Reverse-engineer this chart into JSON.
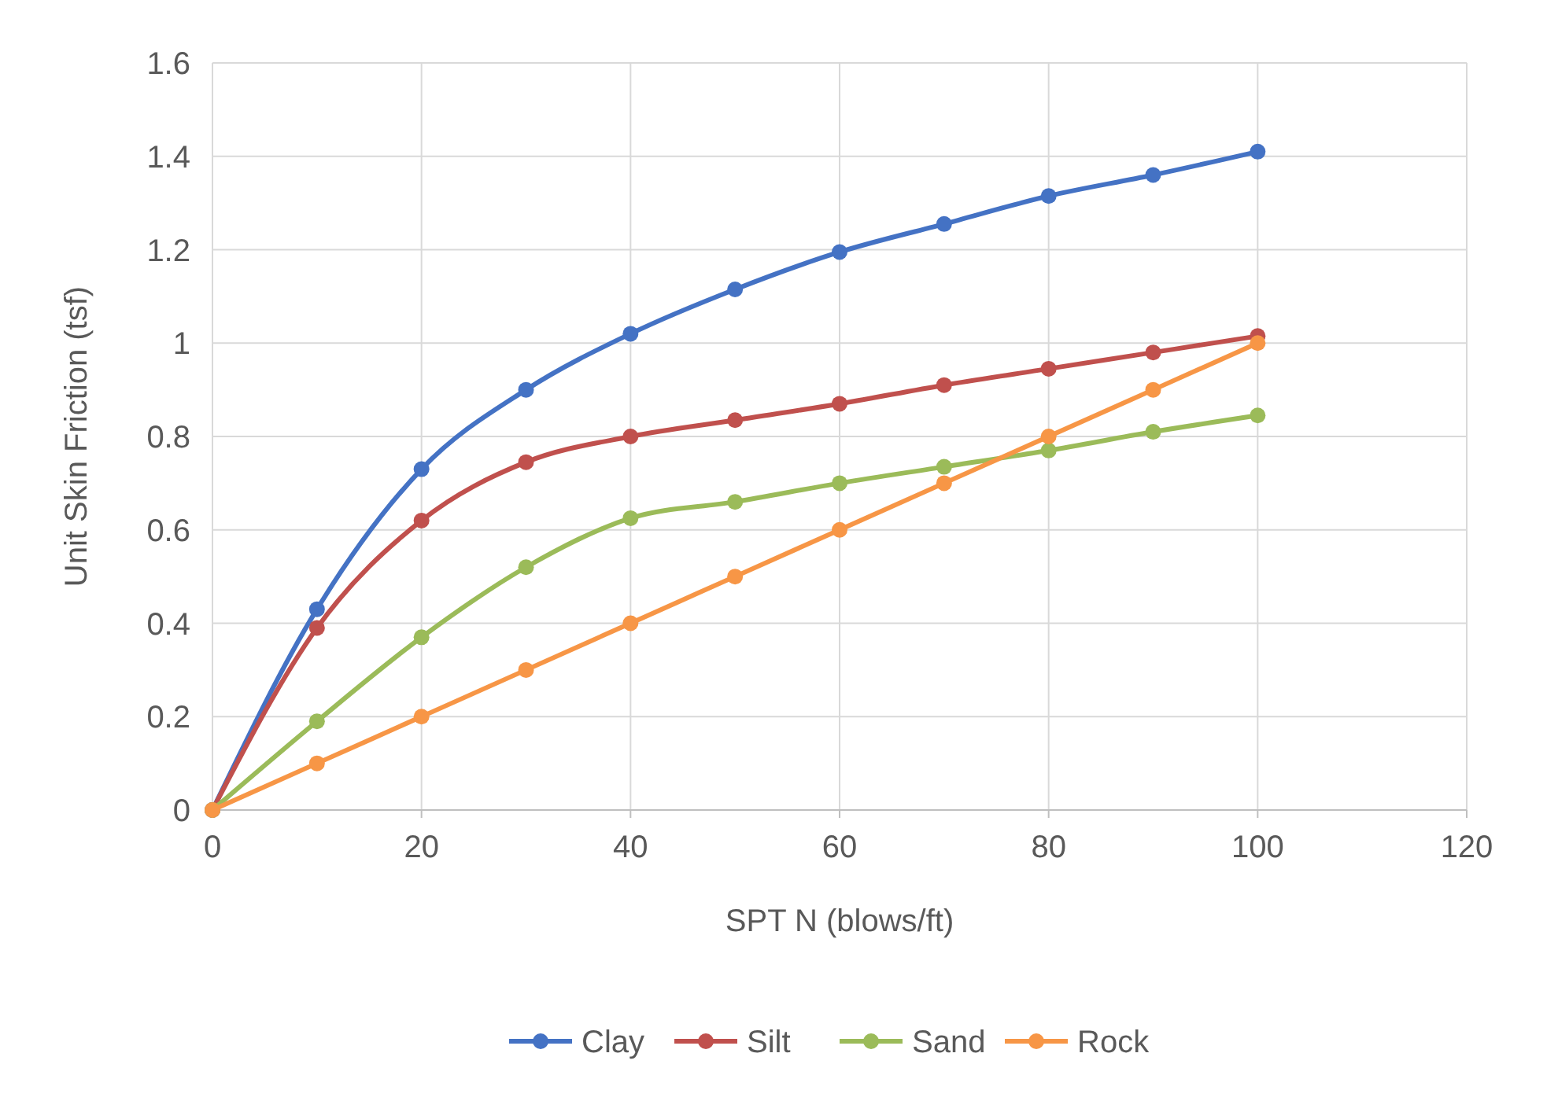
{
  "chart_data": {
    "type": "line",
    "xlabel": "SPT N (blows/ft)",
    "ylabel": "Unit Skin Friction (tsf)",
    "x": [
      0,
      10,
      20,
      30,
      40,
      50,
      60,
      70,
      80,
      90,
      100
    ],
    "series": [
      {
        "name": "Clay",
        "color": "#4472c4",
        "values": [
          0,
          0.43,
          0.73,
          0.9,
          1.02,
          1.115,
          1.195,
          1.255,
          1.315,
          1.36,
          1.41
        ]
      },
      {
        "name": "Silt",
        "color": "#c0504d",
        "values": [
          0,
          0.39,
          0.62,
          0.745,
          0.8,
          0.835,
          0.87,
          0.91,
          0.945,
          0.98,
          1.015
        ]
      },
      {
        "name": "Sand",
        "color": "#9bbb59",
        "values": [
          0,
          0.19,
          0.37,
          0.52,
          0.625,
          0.66,
          0.7,
          0.735,
          0.77,
          0.81,
          0.845
        ]
      },
      {
        "name": "Rock",
        "color": "#f79646",
        "values": [
          0,
          0.1,
          0.2,
          0.3,
          0.4,
          0.5,
          0.6,
          0.7,
          0.8,
          0.9,
          1
        ]
      }
    ],
    "xlim": [
      0,
      120
    ],
    "xticks": [
      0,
      20,
      40,
      60,
      80,
      100,
      120
    ],
    "ylim": [
      0,
      1.6
    ],
    "yticks": [
      0,
      0.2,
      0.4,
      0.6,
      0.8,
      1,
      1.2,
      1.4,
      1.6
    ],
    "grid": true,
    "legend": "bottom",
    "marker": "circle",
    "line_style": "solid"
  }
}
